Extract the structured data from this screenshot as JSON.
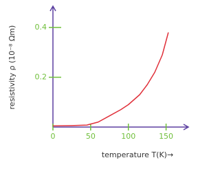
{
  "chart_data": {
    "type": "line",
    "xlabel": "temperature T(K)→",
    "ylabel": "resistivity ρ (10⁻⁸ Ωm)",
    "x": [
      0,
      25,
      45,
      60,
      75,
      90,
      100,
      115,
      125,
      135,
      145,
      153
    ],
    "series": [
      {
        "color": "#e0303a",
        "values": [
          0.005,
          0.006,
          0.008,
          0.02,
          0.045,
          0.07,
          0.09,
          0.13,
          0.17,
          0.22,
          0.29,
          0.38
        ]
      }
    ],
    "xlim": [
      0,
      175
    ],
    "ylim": [
      0,
      0.48
    ],
    "xticks": [
      0,
      50,
      100,
      150
    ],
    "yticks": [
      0.2,
      0.4
    ],
    "axis_color": "#5b3fa0",
    "tick_color": "#6fbf3a",
    "grid": false
  }
}
